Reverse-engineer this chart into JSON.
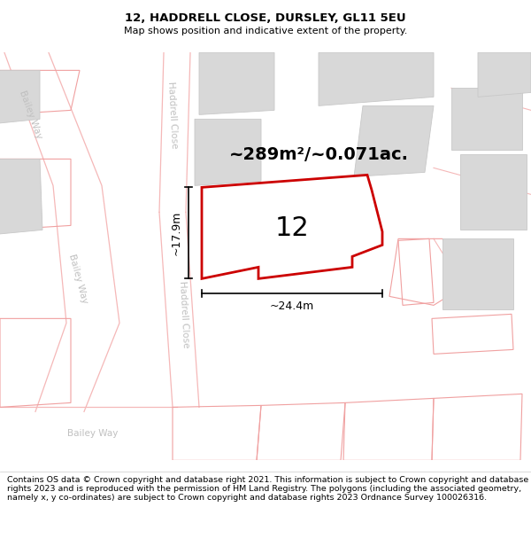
{
  "title": "12, HADDRELL CLOSE, DURSLEY, GL11 5EU",
  "subtitle": "Map shows position and indicative extent of the property.",
  "footer": "Contains OS data © Crown copyright and database right 2021. This information is subject to Crown copyright and database rights 2023 and is reproduced with the permission of HM Land Registry. The polygons (including the associated geometry, namely x, y co-ordinates) are subject to Crown copyright and database rights 2023 Ordnance Survey 100026316.",
  "area_label": "~289m²/~0.071ac.",
  "number_label": "12",
  "dim_width": "~24.4m",
  "dim_height": "~17.9m",
  "road_label_haddrell": "Haddrell Close",
  "road_label_bailey1": "Bailey Way",
  "road_label_bailey2": "Bailey Way",
  "road_label_bailey3": "Bailey Way",
  "map_bg": "#efefef",
  "building_fill": "#d8d8d8",
  "building_edge": "#c8c8c8",
  "road_fill": "#ffffff",
  "road_line_color": "#f5b8b8",
  "highlight_color": "#cc0000",
  "gray_text": "#c0c0c0",
  "title_fontsize": 9.5,
  "subtitle_fontsize": 8,
  "footer_fontsize": 6.8,
  "area_fontsize": 14,
  "number_fontsize": 22,
  "dim_fontsize": 9,
  "road_fontsize": 7.5
}
